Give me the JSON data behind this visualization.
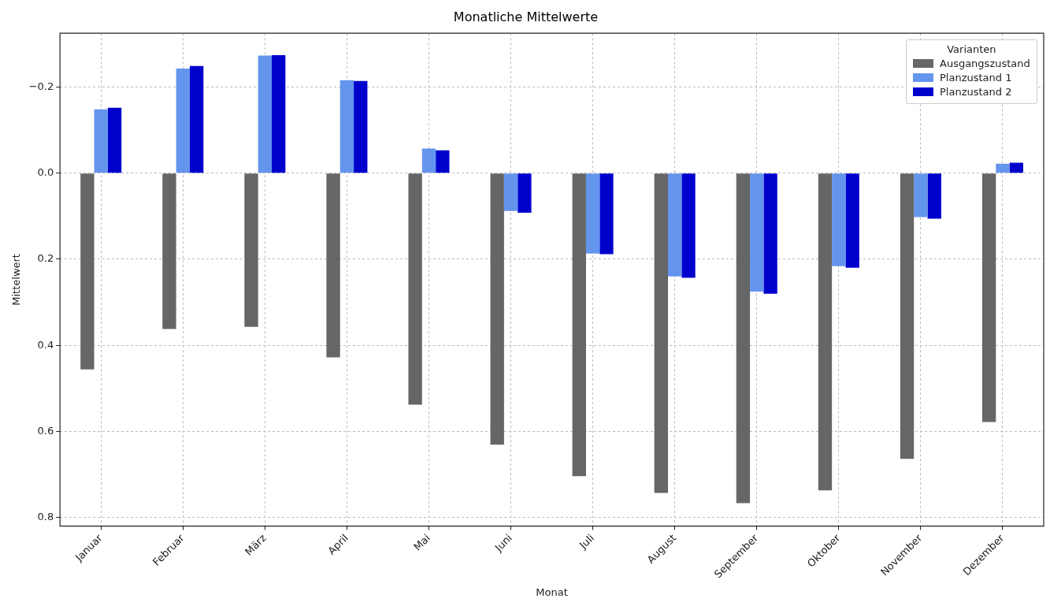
{
  "chart_data": {
    "type": "bar",
    "title": "Monatliche Mittelwerte",
    "xlabel": "Monat",
    "ylabel": "Mittelwert",
    "legend_title": "Varianten",
    "categories": [
      "Januar",
      "Februar",
      "März",
      "April",
      "Mai",
      "Juni",
      "Juli",
      "August",
      "September",
      "Oktober",
      "November",
      "Dezember"
    ],
    "series": [
      {
        "name": "Ausgangszustand",
        "color": "#666666",
        "values": [
          0.456,
          0.362,
          0.357,
          0.428,
          0.538,
          0.631,
          0.704,
          0.743,
          0.767,
          0.737,
          0.664,
          0.578
        ]
      },
      {
        "name": "Planzustand 1",
        "color": "#6495ed",
        "values": [
          -0.148,
          -0.243,
          -0.273,
          -0.216,
          -0.057,
          0.088,
          0.187,
          0.24,
          0.275,
          0.216,
          0.102,
          -0.022
        ]
      },
      {
        "name": "Planzustand 2",
        "color": "#0000cd",
        "values": [
          -0.152,
          -0.249,
          -0.274,
          -0.214,
          -0.053,
          0.092,
          0.188,
          0.243,
          0.28,
          0.22,
          0.106,
          -0.024
        ]
      }
    ],
    "ylim": [
      0.82,
      -0.325
    ],
    "yticks": [
      {
        "value": -0.2,
        "label": "−0.2"
      },
      {
        "value": 0,
        "label": "0.0"
      },
      {
        "value": 0.2,
        "label": "0.2"
      },
      {
        "value": 0.4,
        "label": "0.4"
      },
      {
        "value": 0.6,
        "label": "0.6"
      },
      {
        "value": 0.8,
        "label": "0.8"
      }
    ],
    "grid": true,
    "legend": "top right"
  }
}
